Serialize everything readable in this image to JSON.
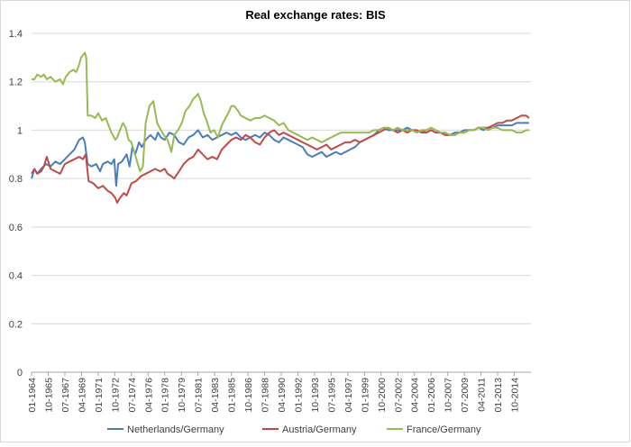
{
  "chart_data": {
    "type": "line",
    "title": "Real exchange rates: BIS",
    "xlabel": "",
    "ylabel": "",
    "ylim": [
      0,
      1.4
    ],
    "yticks": [
      0,
      0.2,
      0.4,
      0.6,
      0.8,
      1,
      1.2,
      1.4
    ],
    "ytick_labels": [
      "0",
      "0.2",
      "0.4",
      "0.6",
      "0.8",
      "1",
      "1.2",
      "1.4"
    ],
    "x_range": [
      1964.0,
      2016.5
    ],
    "x_tick_labels": [
      "01-1964",
      "10-1965",
      "07-1967",
      "04-1969",
      "01-1971",
      "10-1972",
      "07-1974",
      "04-1976",
      "01-1978",
      "10-1979",
      "07-1981",
      "04-1983",
      "01-1985",
      "10-1986",
      "07-1988",
      "04-1990",
      "01-1992",
      "10-1993",
      "07-1995",
      "04-1997",
      "01-1999",
      "10-2000",
      "07-2002",
      "04-2004",
      "01-2006",
      "10-2007",
      "07-2009",
      "04-2011",
      "01-2013",
      "10-2014"
    ],
    "x_tick_years": [
      1964.0,
      1965.75,
      1967.5,
      1969.25,
      1971.0,
      1972.75,
      1974.5,
      1976.25,
      1978.0,
      1979.75,
      1981.5,
      1983.25,
      1985.0,
      1986.75,
      1988.5,
      1990.25,
      1992.0,
      1993.75,
      1995.5,
      1997.25,
      1999.0,
      2000.75,
      2002.5,
      2004.25,
      2006.0,
      2007.75,
      2009.5,
      2011.25,
      2013.0,
      2014.75
    ],
    "grid": true,
    "legend": "bottom",
    "series": [
      {
        "name": "Netherlands/Germany",
        "color": "#4a7ebb",
        "x": [
          1964.0,
          1964.3,
          1964.6,
          1965.0,
          1965.5,
          1966.0,
          1966.5,
          1967.0,
          1967.5,
          1968.0,
          1968.5,
          1969.0,
          1969.4,
          1969.6,
          1969.9,
          1970.3,
          1970.8,
          1971.2,
          1971.5,
          1972.0,
          1972.4,
          1972.7,
          1972.9,
          1973.1,
          1973.5,
          1974.0,
          1974.3,
          1974.6,
          1974.9,
          1975.3,
          1975.6,
          1976.0,
          1976.5,
          1977.0,
          1977.3,
          1977.6,
          1978.0,
          1978.5,
          1979.0,
          1979.5,
          1980.0,
          1980.5,
          1981.0,
          1981.5,
          1982.0,
          1982.5,
          1983.0,
          1983.5,
          1984.0,
          1984.5,
          1985.0,
          1985.5,
          1986.0,
          1986.5,
          1987.0,
          1987.5,
          1988.0,
          1988.5,
          1989.0,
          1989.5,
          1990.0,
          1990.5,
          1991.0,
          1991.5,
          1992.0,
          1992.5,
          1993.0,
          1993.5,
          1994.0,
          1994.5,
          1995.0,
          1995.5,
          1996.0,
          1996.5,
          1997.0,
          1997.5,
          1998.0,
          1998.5,
          1999.0,
          1999.5,
          2000.0,
          2000.5,
          2001.0,
          2001.5,
          2002.0,
          2002.5,
          2003.0,
          2003.5,
          2004.0,
          2004.5,
          2005.0,
          2005.5,
          2006.0,
          2006.5,
          2007.0,
          2007.5,
          2008.0,
          2008.5,
          2009.0,
          2009.5,
          2010.0,
          2010.5,
          2011.0,
          2011.5,
          2012.0,
          2012.5,
          2013.0,
          2013.5,
          2014.0,
          2014.5,
          2015.0,
          2015.5,
          2016.0,
          2016.3
        ],
        "values": [
          0.8,
          0.84,
          0.82,
          0.84,
          0.86,
          0.85,
          0.87,
          0.86,
          0.88,
          0.9,
          0.92,
          0.96,
          0.97,
          0.95,
          0.86,
          0.85,
          0.86,
          0.83,
          0.86,
          0.87,
          0.86,
          0.88,
          0.77,
          0.86,
          0.87,
          0.9,
          0.85,
          0.93,
          0.9,
          0.95,
          0.93,
          0.96,
          0.98,
          0.96,
          0.99,
          0.97,
          0.96,
          0.99,
          0.98,
          0.95,
          0.94,
          0.97,
          0.98,
          1.0,
          0.97,
          0.98,
          0.96,
          0.97,
          0.98,
          0.99,
          0.98,
          0.99,
          0.97,
          0.96,
          0.97,
          0.98,
          0.97,
          0.99,
          0.98,
          0.96,
          0.95,
          0.97,
          0.96,
          0.95,
          0.94,
          0.93,
          0.9,
          0.89,
          0.9,
          0.91,
          0.89,
          0.9,
          0.91,
          0.9,
          0.91,
          0.92,
          0.93,
          0.95,
          0.96,
          0.97,
          0.98,
          1.0,
          1.01,
          1.0,
          1.0,
          1.0,
          1.0,
          1.01,
          1.0,
          0.99,
          1.0,
          0.99,
          1.0,
          0.99,
          0.99,
          0.98,
          0.98,
          0.99,
          0.99,
          1.0,
          1.0,
          1.0,
          1.01,
          1.0,
          1.01,
          1.01,
          1.02,
          1.02,
          1.02,
          1.02,
          1.03,
          1.03,
          1.03,
          1.03
        ]
      },
      {
        "name": "Austria/Germany",
        "color": "#be4b48",
        "x": [
          1964.0,
          1964.3,
          1964.6,
          1965.0,
          1965.3,
          1965.6,
          1966.0,
          1966.5,
          1967.0,
          1967.5,
          1968.0,
          1968.5,
          1969.0,
          1969.4,
          1969.7,
          1970.0,
          1970.5,
          1971.0,
          1971.5,
          1972.0,
          1972.4,
          1972.8,
          1973.0,
          1973.3,
          1973.7,
          1974.0,
          1974.5,
          1975.0,
          1975.5,
          1976.0,
          1976.5,
          1977.0,
          1977.5,
          1978.0,
          1978.3,
          1978.7,
          1979.0,
          1979.5,
          1980.0,
          1980.5,
          1981.0,
          1981.5,
          1982.0,
          1982.5,
          1983.0,
          1983.5,
          1984.0,
          1984.5,
          1985.0,
          1985.5,
          1986.0,
          1986.5,
          1987.0,
          1987.5,
          1988.0,
          1988.5,
          1989.0,
          1989.5,
          1990.0,
          1990.5,
          1991.0,
          1991.5,
          1992.0,
          1992.5,
          1993.0,
          1993.5,
          1994.0,
          1994.5,
          1995.0,
          1995.5,
          1996.0,
          1996.5,
          1997.0,
          1997.5,
          1998.0,
          1998.5,
          1999.0,
          1999.5,
          2000.0,
          2000.5,
          2001.0,
          2001.5,
          2002.0,
          2002.5,
          2003.0,
          2003.5,
          2004.0,
          2004.5,
          2005.0,
          2005.5,
          2006.0,
          2006.5,
          2007.0,
          2007.5,
          2008.0,
          2008.5,
          2009.0,
          2009.5,
          2010.0,
          2010.5,
          2011.0,
          2011.5,
          2012.0,
          2012.5,
          2013.0,
          2013.5,
          2014.0,
          2014.5,
          2015.0,
          2015.5,
          2016.0,
          2016.3
        ],
        "values": [
          0.82,
          0.84,
          0.82,
          0.83,
          0.85,
          0.89,
          0.84,
          0.83,
          0.82,
          0.86,
          0.87,
          0.88,
          0.89,
          0.88,
          0.9,
          0.79,
          0.78,
          0.76,
          0.77,
          0.75,
          0.74,
          0.72,
          0.7,
          0.72,
          0.74,
          0.73,
          0.78,
          0.79,
          0.81,
          0.82,
          0.83,
          0.84,
          0.83,
          0.84,
          0.82,
          0.81,
          0.8,
          0.83,
          0.86,
          0.88,
          0.89,
          0.92,
          0.9,
          0.88,
          0.89,
          0.88,
          0.92,
          0.94,
          0.96,
          0.97,
          0.96,
          0.98,
          0.97,
          0.95,
          0.94,
          0.97,
          0.99,
          1.0,
          0.98,
          0.99,
          0.98,
          0.97,
          0.96,
          0.95,
          0.94,
          0.93,
          0.92,
          0.93,
          0.94,
          0.92,
          0.93,
          0.94,
          0.95,
          0.95,
          0.96,
          0.95,
          0.96,
          0.97,
          0.98,
          0.99,
          1.0,
          1.01,
          1.0,
          0.99,
          1.0,
          0.99,
          1.0,
          1.0,
          0.99,
          0.99,
          1.0,
          0.99,
          0.99,
          0.98,
          0.98,
          0.98,
          0.99,
          0.99,
          1.0,
          1.0,
          1.01,
          1.01,
          1.01,
          1.02,
          1.03,
          1.03,
          1.04,
          1.04,
          1.05,
          1.06,
          1.06,
          1.05
        ]
      },
      {
        "name": "France/Germany",
        "color": "#98b954",
        "x": [
          1964.0,
          1964.3,
          1964.6,
          1965.0,
          1965.3,
          1965.6,
          1966.0,
          1966.5,
          1967.0,
          1967.3,
          1967.6,
          1968.0,
          1968.4,
          1968.7,
          1969.0,
          1969.2,
          1969.4,
          1969.6,
          1969.75,
          1969.9,
          1970.3,
          1970.7,
          1971.0,
          1971.4,
          1971.8,
          1972.0,
          1972.4,
          1972.8,
          1973.0,
          1973.3,
          1973.6,
          1973.9,
          1974.2,
          1974.5,
          1974.8,
          1975.1,
          1975.4,
          1975.7,
          1976.0,
          1976.4,
          1976.8,
          1977.2,
          1977.6,
          1977.9,
          1978.3,
          1978.7,
          1979.0,
          1979.4,
          1979.8,
          1980.2,
          1980.6,
          1981.0,
          1981.3,
          1981.5,
          1981.8,
          1982.1,
          1982.4,
          1982.8,
          1983.2,
          1983.6,
          1984.0,
          1984.4,
          1984.8,
          1985.0,
          1985.3,
          1985.7,
          1986.0,
          1986.5,
          1987.0,
          1987.5,
          1988.0,
          1988.5,
          1989.0,
          1989.5,
          1990.0,
          1990.5,
          1991.0,
          1991.5,
          1992.0,
          1992.5,
          1993.0,
          1993.5,
          1994.0,
          1994.5,
          1995.0,
          1995.5,
          1996.0,
          1996.5,
          1997.0,
          1997.5,
          1998.0,
          1998.5,
          1999.0,
          1999.5,
          2000.0,
          2000.5,
          2001.0,
          2001.5,
          2002.0,
          2002.5,
          2003.0,
          2003.5,
          2004.0,
          2004.5,
          2005.0,
          2005.5,
          2006.0,
          2006.5,
          2007.0,
          2007.5,
          2008.0,
          2008.5,
          2009.0,
          2009.5,
          2010.0,
          2010.5,
          2011.0,
          2011.5,
          2012.0,
          2012.5,
          2013.0,
          2013.5,
          2014.0,
          2014.5,
          2015.0,
          2015.5,
          2016.0,
          2016.3
        ],
        "values": [
          1.21,
          1.21,
          1.23,
          1.22,
          1.23,
          1.21,
          1.22,
          1.2,
          1.21,
          1.19,
          1.22,
          1.24,
          1.25,
          1.24,
          1.27,
          1.3,
          1.31,
          1.32,
          1.3,
          1.06,
          1.06,
          1.05,
          1.07,
          1.04,
          1.05,
          1.03,
          0.99,
          0.96,
          0.97,
          1.0,
          1.03,
          1.01,
          0.96,
          0.95,
          0.91,
          0.87,
          0.83,
          0.85,
          1.03,
          1.1,
          1.12,
          1.03,
          1.0,
          0.98,
          0.96,
          0.91,
          0.98,
          1.0,
          1.03,
          1.08,
          1.1,
          1.13,
          1.14,
          1.15,
          1.12,
          1.07,
          1.04,
          0.99,
          1.0,
          0.97,
          1.02,
          1.05,
          1.08,
          1.1,
          1.1,
          1.08,
          1.06,
          1.05,
          1.04,
          1.05,
          1.05,
          1.06,
          1.05,
          1.04,
          1.02,
          1.03,
          1.0,
          0.99,
          0.98,
          0.97,
          0.96,
          0.97,
          0.96,
          0.95,
          0.96,
          0.97,
          0.98,
          0.99,
          0.99,
          0.99,
          0.99,
          0.99,
          0.99,
          0.99,
          1.0,
          1.0,
          1.01,
          1.01,
          1.0,
          1.01,
          1.0,
          1.0,
          1.0,
          0.99,
          1.0,
          1.0,
          1.01,
          1.0,
          0.99,
          0.99,
          0.98,
          0.98,
          0.99,
          0.99,
          1.0,
          1.0,
          1.01,
          1.01,
          1.0,
          1.01,
          1.01,
          1.0,
          1.0,
          1.0,
          0.99,
          0.99,
          1.0,
          1.0
        ]
      }
    ]
  }
}
